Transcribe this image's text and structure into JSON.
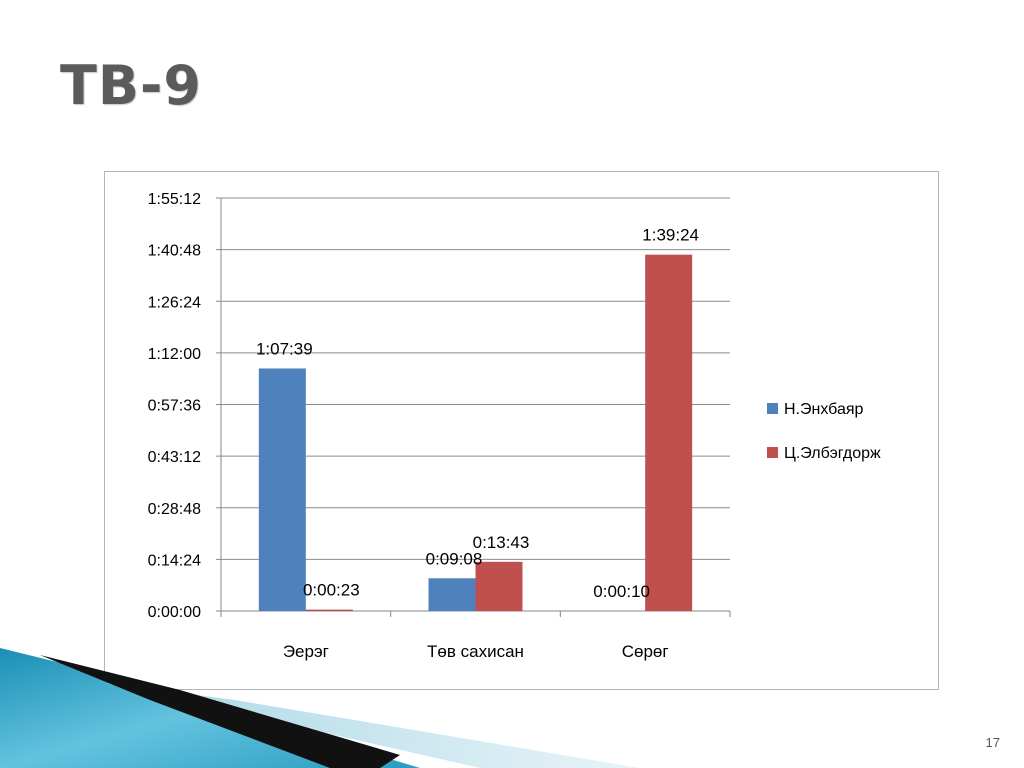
{
  "slide": {
    "title": "ТВ-9",
    "page_number": "17"
  },
  "chart_data": {
    "type": "bar",
    "categories": [
      "Эерэг",
      "Төв сахисан",
      "Сөрөг"
    ],
    "series": [
      {
        "name": "Н.Энхбаяр",
        "color": "#4f81bd",
        "values": [
          "1:07:39",
          "0:09:08",
          null
        ],
        "data_labels": [
          "1:07:39",
          "0:09:08",
          ""
        ]
      },
      {
        "name": "Ц.Элбэгдорж",
        "color": "#c0504d",
        "values": [
          "0:00:23",
          "0:13:43",
          "1:39:24"
        ],
        "data_labels": [
          "0:00:23",
          "0:13:43",
          "1:39:24"
        ]
      }
    ],
    "extra_labels": [
      "0:00:10"
    ],
    "y_ticks": [
      "0:00:00",
      "0:14:24",
      "0:28:48",
      "0:43:12",
      "0:57:36",
      "1:12:00",
      "1:26:24",
      "1:40:48",
      "1:55:12"
    ],
    "ylim": [
      "0:00:00",
      "1:55:12"
    ],
    "grid": true,
    "legend_position": "right"
  }
}
